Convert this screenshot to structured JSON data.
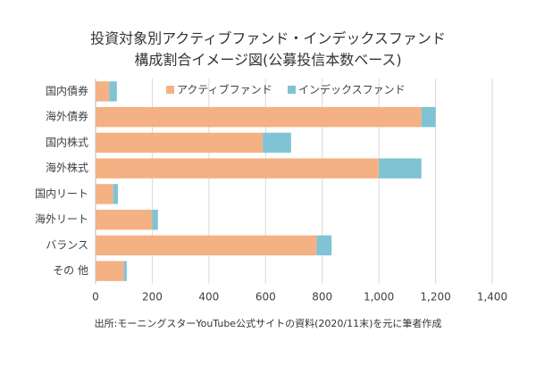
{
  "chart_data": {
    "type": "stacked-bar-horizontal",
    "title": [
      "投資対象別アクティブファンド・インデックスファンド",
      "構成割合イメージ図(公募投信本数ベース)"
    ],
    "categories": [
      "国内債券",
      "海外債券",
      "国内株式",
      "海外株式",
      "国内リート",
      "海外リート",
      "バランス",
      "その 他"
    ],
    "series": [
      {
        "name": "アクティブファンド",
        "color": "#f4b183",
        "values": [
          48,
          1150,
          590,
          1000,
          62,
          200,
          780,
          100
        ]
      },
      {
        "name": "インデックスファンド",
        "color": "#7fc3d4",
        "values": [
          27,
          50,
          100,
          150,
          17,
          20,
          53,
          10
        ]
      }
    ],
    "xlim": [
      0,
      1400
    ],
    "xticks": [
      0,
      200,
      400,
      600,
      800,
      {
        "value": 1000,
        "label": "1,000"
      },
      {
        "value": 1200,
        "label": "1,200"
      },
      {
        "value": 1400,
        "label": "1,400"
      }
    ],
    "grid": true,
    "note": "出所:モーニングスターYouTube公式サイトの資料(2020/11末)を元に筆者作成"
  }
}
